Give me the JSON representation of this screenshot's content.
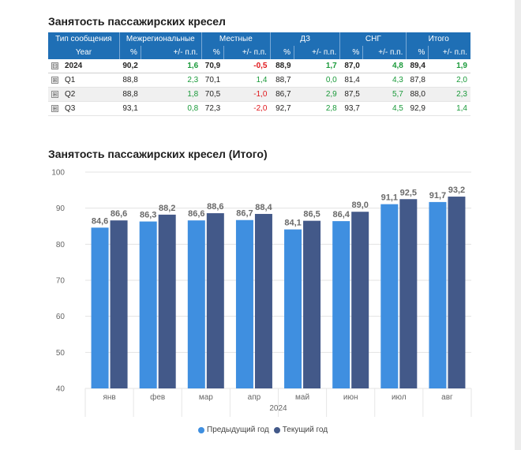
{
  "table": {
    "title": "Занятость пассажирских кресел",
    "group_header_label": "Тип сообщения",
    "groups": [
      "Межрегиональные",
      "Местные",
      "ДЗ",
      "СНГ",
      "Итого"
    ],
    "year_label": "Year",
    "sub_headers": [
      "%",
      "+/- п.п."
    ],
    "rows": [
      {
        "label": "2024",
        "expander": "⊟",
        "cells": [
          "90,2",
          "1,6",
          "70,9",
          "-0,5",
          "88,9",
          "1,7",
          "87,0",
          "4,8",
          "89,4",
          "1,9"
        ]
      },
      {
        "label": "Q1",
        "expander": "⊞",
        "cells": [
          "88,8",
          "2,3",
          "70,1",
          "1,4",
          "88,7",
          "0,0",
          "81,4",
          "4,3",
          "87,8",
          "2,0"
        ]
      },
      {
        "label": "Q2",
        "expander": "⊞",
        "cells": [
          "88,8",
          "1,8",
          "70,5",
          "-1,0",
          "86,7",
          "2,9",
          "87,5",
          "5,7",
          "88,0",
          "2,3"
        ]
      },
      {
        "label": "Q3",
        "expander": "⊞",
        "cells": [
          "93,1",
          "0,8",
          "72,3",
          "-2,0",
          "92,7",
          "2,8",
          "93,7",
          "4,5",
          "92,9",
          "1,4"
        ]
      }
    ]
  },
  "chart_data": {
    "type": "bar",
    "title": "Занятость пассажирских кресел (Итого)",
    "categories": [
      "янв",
      "фев",
      "мар",
      "апр",
      "май",
      "июн",
      "июл",
      "авг"
    ],
    "xlabel": "2024",
    "ylabel": "",
    "ylim": [
      40,
      100
    ],
    "yticks": [
      40,
      50,
      60,
      70,
      80,
      90,
      100
    ],
    "grid": true,
    "legend_position": "bottom",
    "series": [
      {
        "name": "Предыдущий год",
        "color": "#3f8fe0",
        "values": [
          84.6,
          86.3,
          86.6,
          86.7,
          84.1,
          86.4,
          91.1,
          91.7
        ],
        "labels": [
          "84,6",
          "86,3",
          "86,6",
          "86,7",
          "84,1",
          "86,4",
          "91,1",
          "91,7"
        ]
      },
      {
        "name": "Текущий год",
        "color": "#435989",
        "values": [
          86.6,
          88.2,
          88.6,
          88.4,
          86.5,
          89.0,
          92.5,
          93.2
        ],
        "labels": [
          "86,6",
          "88,2",
          "88,6",
          "88,4",
          "86,5",
          "89,0",
          "92,5",
          "93,2"
        ]
      }
    ]
  },
  "colors": {
    "positive": "#1a9a3a",
    "negative": "#e0161b",
    "header": "#1f6fb5"
  }
}
